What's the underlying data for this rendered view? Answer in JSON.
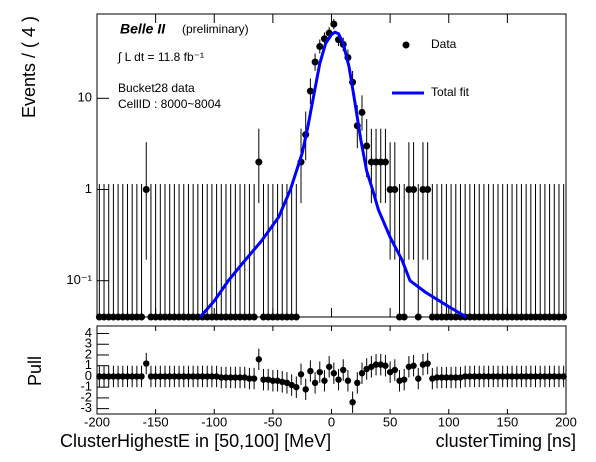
{
  "chart_data": [
    {
      "type": "scatter",
      "log_y": true,
      "y_label": "Events / ( 4 )",
      "annotations": [
        "Belle II",
        "(preliminary)",
        "∫ L dt = 11.8 fb⁻¹",
        "Bucket28 data",
        "CellID : 8000~8004"
      ],
      "legend": "upper right",
      "xlim": [
        -200,
        200
      ],
      "xticks": [
        -200,
        -150,
        -100,
        -50,
        0,
        50,
        100,
        150,
        200
      ],
      "ylim": [
        0.04,
        84
      ],
      "yticks": [
        {
          "value": 0.1,
          "label": "10⁻¹"
        },
        1,
        10
      ],
      "series": [
        {
          "name": "Data",
          "color": "#000000",
          "x": [
            -198,
            -194,
            -190,
            -186,
            -182,
            -178,
            -174,
            -170,
            -166,
            -162,
            -158,
            -154,
            -150,
            -146,
            -142,
            -138,
            -134,
            -130,
            -126,
            -122,
            -118,
            -114,
            -110,
            -106,
            -102,
            -98,
            -94,
            -90,
            -86,
            -82,
            -78,
            -74,
            -70,
            -66,
            -62,
            -58,
            -54,
            -50,
            -46,
            -42,
            -38,
            -34,
            -30,
            -26,
            -22,
            -18,
            -14,
            -10,
            -6,
            -2,
            2,
            6,
            10,
            14,
            18,
            22,
            26,
            30,
            34,
            38,
            42,
            46,
            50,
            54,
            58,
            62,
            66,
            70,
            74,
            78,
            82,
            86,
            90,
            94,
            98,
            102,
            106,
            110,
            114,
            118,
            122,
            126,
            130,
            134,
            138,
            142,
            146,
            150,
            154,
            158,
            162,
            166,
            170,
            174,
            178,
            182,
            186,
            190,
            194,
            198
          ],
          "values": [
            0,
            0,
            0,
            0,
            0,
            0,
            0,
            0,
            0,
            0,
            1,
            0,
            0,
            0,
            0,
            0,
            0,
            0,
            0,
            0,
            0,
            0,
            0,
            0,
            0,
            0,
            0,
            0,
            0,
            0,
            0,
            0,
            0,
            0,
            2,
            0,
            0,
            0,
            0,
            0,
            0,
            0,
            0,
            2,
            4,
            12,
            25,
            37,
            45,
            52,
            65,
            44,
            39,
            28,
            15,
            5,
            7,
            3,
            2,
            2,
            2,
            2,
            1,
            1,
            0,
            0,
            1,
            1,
            0,
            1,
            1,
            0,
            0,
            0,
            0,
            0,
            0,
            0,
            0,
            0,
            0,
            0,
            0,
            0,
            0,
            0,
            0,
            0,
            0,
            0,
            0,
            0,
            0,
            0,
            0,
            0,
            0,
            0,
            0,
            0
          ],
          "err_low": [
            0,
            0,
            0,
            0,
            0,
            0,
            0,
            0,
            0,
            0,
            0.83,
            0,
            0,
            0,
            0,
            0,
            0,
            0,
            0,
            0,
            0,
            0,
            0,
            0,
            0,
            0,
            0,
            0,
            0,
            0,
            0,
            0,
            0,
            0,
            1.29,
            0,
            0,
            0,
            0,
            0,
            0,
            0,
            0,
            1.29,
            1.91,
            3.41,
            4.97,
            6.06,
            6.68,
            7.19,
            8.04,
            6.61,
            6.23,
            5.26,
            3.82,
            2.16,
            2.58,
            1.63,
            1.29,
            1.29,
            1.29,
            1.29,
            0.83,
            0.83,
            0,
            0,
            0.83,
            0.83,
            0,
            0.83,
            0.83,
            0,
            0,
            0,
            0,
            0,
            0,
            0,
            0,
            0,
            0,
            0,
            0,
            0,
            0,
            0,
            0,
            0,
            0,
            0,
            0,
            0,
            0,
            0,
            0,
            0,
            0,
            0,
            0,
            0
          ],
          "err_high": [
            1.15,
            1.15,
            1.15,
            1.15,
            1.15,
            1.15,
            1.15,
            1.15,
            1.15,
            1.15,
            2.3,
            1.15,
            1.15,
            1.15,
            1.15,
            1.15,
            1.15,
            1.15,
            1.15,
            1.15,
            1.15,
            1.15,
            1.15,
            1.15,
            1.15,
            1.15,
            1.15,
            1.15,
            1.15,
            1.15,
            1.15,
            1.15,
            1.15,
            1.15,
            2.64,
            1.15,
            1.15,
            1.15,
            1.15,
            1.15,
            1.15,
            1.15,
            1.15,
            2.64,
            3.16,
            4.52,
            6.06,
            7.12,
            7.74,
            8.26,
            9.1,
            7.67,
            7.29,
            6.35,
            4.95,
            3.38,
            3.77,
            2.92,
            2.64,
            2.64,
            2.64,
            2.64,
            2.3,
            2.3,
            1.15,
            1.15,
            2.3,
            2.3,
            1.15,
            2.3,
            2.3,
            1.15,
            1.15,
            1.15,
            1.15,
            1.15,
            1.15,
            1.15,
            1.15,
            1.15,
            1.15,
            1.15,
            1.15,
            1.15,
            1.15,
            1.15,
            1.15,
            1.15,
            1.15,
            1.15,
            1.15,
            1.15,
            1.15,
            1.15,
            1.15,
            1.15,
            1.15,
            1.15,
            1.15,
            1.15
          ]
        },
        {
          "name": "Total fit",
          "color": "#0000ff",
          "line": true,
          "x": [
            -112,
            -100,
            -88,
            -75,
            -60,
            -45,
            -35,
            -25,
            -20,
            -15,
            -10,
            -5,
            0,
            3,
            6,
            10,
            15,
            20,
            25,
            30,
            35,
            40,
            50,
            60,
            67,
            80,
            100,
            115
          ],
          "values": [
            0.04,
            0.06,
            0.1,
            0.16,
            0.27,
            0.5,
            1.0,
            2.5,
            5,
            11,
            24,
            40,
            50,
            53,
            51,
            40,
            22,
            9,
            3.5,
            1.6,
            1.0,
            0.6,
            0.3,
            0.17,
            0.1,
            0.075,
            0.052,
            0.04
          ]
        }
      ]
    },
    {
      "type": "scatter",
      "y_label": "Pull",
      "x_label": "clusterTiming [ns]",
      "annotations": [
        "ClusterHighestE in [50,100] [MeV]"
      ],
      "xlim": [
        -200,
        200
      ],
      "xticks": [
        -200,
        -150,
        -100,
        -50,
        0,
        50,
        100,
        150,
        200
      ],
      "ylim": [
        -3.5,
        4.7
      ],
      "yticks": [
        -3,
        -2,
        -1,
        0,
        1,
        2,
        3,
        4
      ],
      "series": [
        {
          "color": "#000000",
          "x_from": "chart_data.0.series.0.x",
          "error": 1,
          "values": [
            0,
            0,
            0,
            0,
            0,
            0,
            0,
            0,
            0,
            0,
            1.2,
            0,
            0,
            0,
            0,
            0,
            0,
            0,
            0,
            0,
            0,
            0,
            0,
            0,
            0,
            0,
            -0.1,
            -0.1,
            -0.1,
            -0.1,
            -0.1,
            -0.1,
            -0.2,
            -0.2,
            1.6,
            -0.3,
            -0.3,
            -0.4,
            -0.4,
            -0.5,
            -0.6,
            -0.8,
            -1.0,
            0.2,
            -1.2,
            0.5,
            -0.6,
            0.4,
            -0.4,
            0.9,
            0.3,
            -0.3,
            0.6,
            -0.4,
            -2.4,
            -0.6,
            0.3,
            0.7,
            0.9,
            1.1,
            1.1,
            1.0,
            0.4,
            0.6,
            -0.4,
            -0.3,
            0.9,
            1.0,
            -0.2,
            1.1,
            1.2,
            -0.2,
            -0.1,
            -0.1,
            -0.1,
            -0.1,
            -0.1,
            -0.1,
            0,
            0,
            0,
            0,
            0,
            0,
            0,
            0,
            0,
            0,
            0,
            0,
            0,
            0,
            0,
            0,
            0,
            0,
            0,
            0,
            0,
            0
          ]
        }
      ]
    }
  ]
}
